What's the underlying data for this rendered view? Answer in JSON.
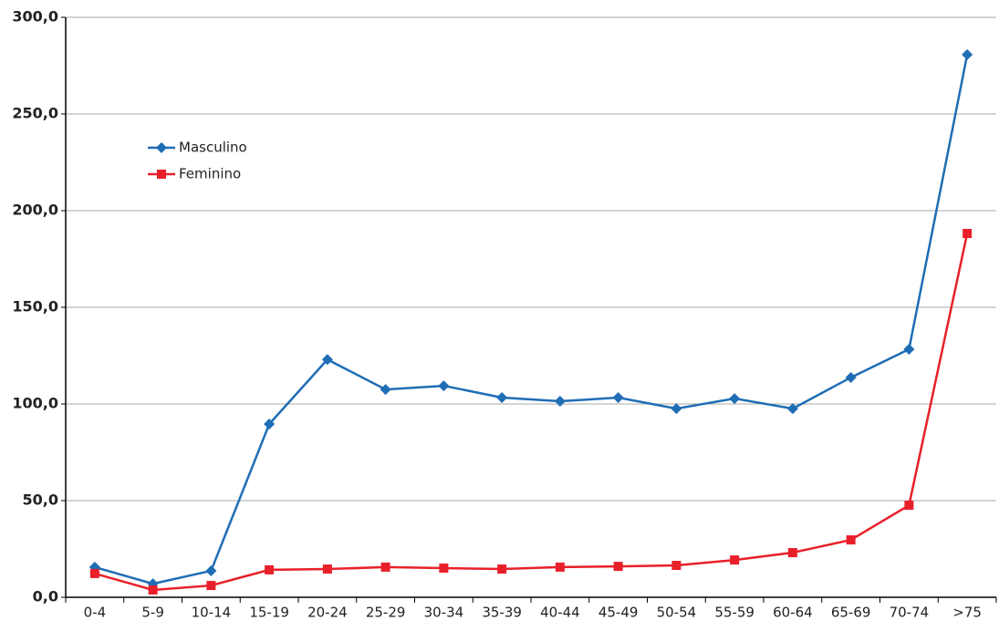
{
  "chart_data": {
    "type": "line",
    "categories": [
      "0-4",
      "5-9",
      "10-14",
      "15-19",
      "20-24",
      "25-29",
      "30-34",
      "35-39",
      "40-44",
      "45-49",
      "50-54",
      "55-59",
      "60-64",
      "65-69",
      "70-74",
      ">75"
    ],
    "series": [
      {
        "name": "Masculino",
        "color": "#1f6db5",
        "marker": "diamond",
        "values": [
          15.6,
          7.0,
          13.7,
          89.6,
          123.0,
          107.5,
          109.4,
          103.3,
          101.4,
          103.3,
          97.6,
          102.8,
          97.6,
          113.7,
          128.3,
          280.7
        ]
      },
      {
        "name": "Feminino",
        "color": "#e8202a",
        "marker": "square",
        "values": [
          12.3,
          3.8,
          6.1,
          14.2,
          14.6,
          15.6,
          15.1,
          14.6,
          15.6,
          16.0,
          16.5,
          19.3,
          23.1,
          29.7,
          47.6,
          188.2
        ]
      }
    ],
    "ylim": [
      0,
      300
    ],
    "yticks": [
      {
        "value": 0,
        "label": "0,0"
      },
      {
        "value": 50,
        "label": "50,0"
      },
      {
        "value": 100,
        "label": "100,0"
      },
      {
        "value": 150,
        "label": "150,0"
      },
      {
        "value": 200,
        "label": "200,0"
      },
      {
        "value": 250,
        "label": "250,0"
      },
      {
        "value": 300,
        "label": "300,0"
      }
    ],
    "grid": true,
    "legend": "upper left"
  }
}
